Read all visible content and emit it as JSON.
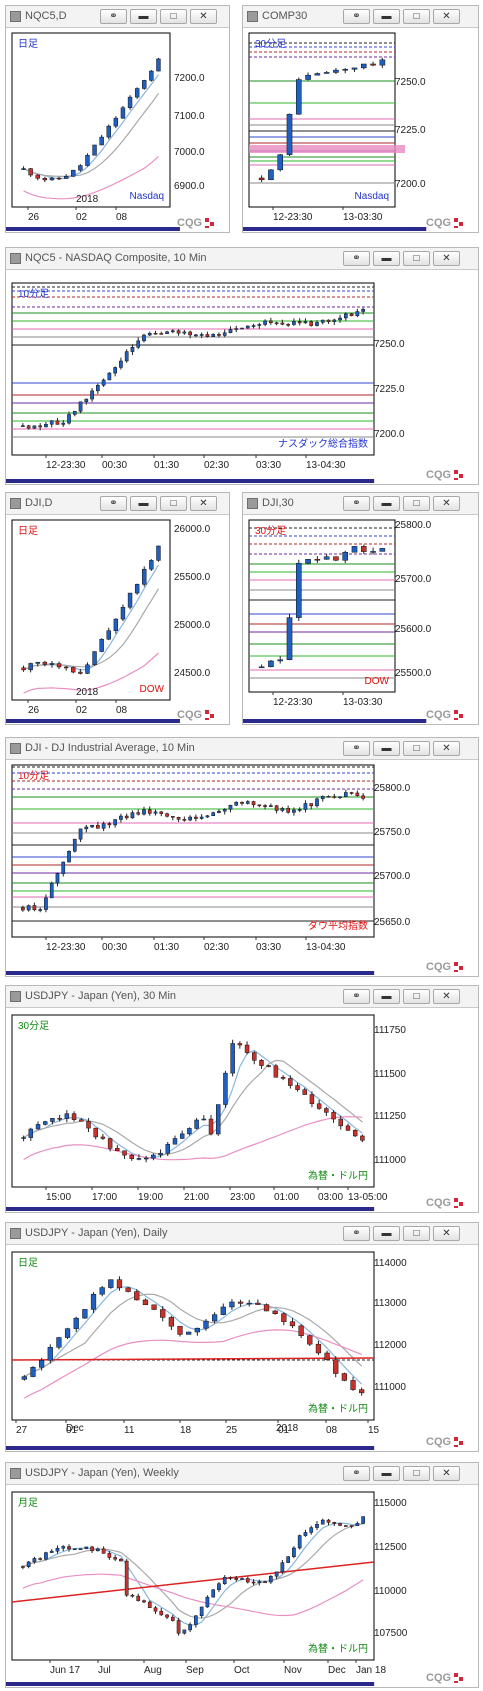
{
  "colors": {
    "up": "#1f5fc1",
    "down": "#c8322c",
    "wick": "#222222",
    "ma_fast": "#8ab6de",
    "ma_mid": "#a9a9a9",
    "ma_slow": "#e98fc2",
    "frame": "#000000",
    "brand_red": "#d6243b"
  },
  "icons": {
    "window": "window-icon",
    "link": "link-icon",
    "minimize": "minimize-icon",
    "restore": "restore-icon",
    "close": "close-icon",
    "logo": "cqg-logo"
  },
  "windows": [
    {
      "key": "nqc5_daily",
      "title": "NQC5,D",
      "label_tl": "日足",
      "label_tl_color": "#2233cc",
      "label_br": "Nasdaq",
      "label_br_color": "#2233cc",
      "ylabels": [
        "7200.0",
        "7100.0",
        "7000.0",
        "6900.0"
      ],
      "xlabels": [
        "26",
        "02",
        "08"
      ],
      "year_label": "2018"
    },
    {
      "key": "comp30",
      "title": "COMP30",
      "label_tl": "30分足",
      "label_tl_color": "#2233cc",
      "label_br": "Nasdaq",
      "label_br_color": "#2233cc",
      "ylabels": [
        "7250.0",
        "7225.0",
        "7200.0"
      ],
      "xlabels": [
        "12-23:30",
        "13-03:30"
      ]
    },
    {
      "key": "nqc5_10min",
      "title": "NQC5 - NASDAQ Composite, 10 Min",
      "label_tl": "10分足",
      "label_tl_color": "#2233cc",
      "label_br": "ナスダック総合指数",
      "label_br_color": "#2233cc",
      "ylabels": [
        "7250.0",
        "7225.0",
        "7200.0"
      ],
      "xlabels": [
        "12-23:30",
        "00:30",
        "01:30",
        "02:30",
        "03:30",
        "13-04:30"
      ]
    },
    {
      "key": "dji_daily",
      "title": "DJI,D",
      "label_tl": "日足",
      "label_tl_color": "#dd1111",
      "label_br": "DOW",
      "label_br_color": "#dd1111",
      "ylabels": [
        "26000.0",
        "25500.0",
        "25000.0",
        "24500.0"
      ],
      "xlabels": [
        "26",
        "02",
        "08"
      ],
      "year_label": "2018"
    },
    {
      "key": "dji30",
      "title": "DJI,30",
      "label_tl": "30分足",
      "label_tl_color": "#dd1111",
      "label_br": "DOW",
      "label_br_color": "#dd1111",
      "ylabels": [
        "25800.0",
        "25700.0",
        "25600.0",
        "25500.0"
      ],
      "xlabels": [
        "12-23:30",
        "13-03:30"
      ]
    },
    {
      "key": "dji_10min",
      "title": "DJI - DJ Industrial Average, 10 Min",
      "label_tl": "10分足",
      "label_tl_color": "#dd1111",
      "label_br": "ダウ平均指数",
      "label_br_color": "#dd1111",
      "ylabels": [
        "25800.0",
        "25750.0",
        "25700.0",
        "25650.0"
      ],
      "xlabels": [
        "12-23:30",
        "00:30",
        "01:30",
        "02:30",
        "03:30",
        "13-04:30"
      ]
    },
    {
      "key": "usdjpy_30",
      "title": "USDJPY - Japan (Yen), 30 Min",
      "label_tl": "30分足",
      "label_tl_color": "#118811",
      "label_br": "為替・ドル円",
      "label_br_color": "#118811",
      "ylabels": [
        "111750",
        "111500",
        "111250",
        "111000"
      ],
      "xlabels": [
        "15:00",
        "17:00",
        "19:00",
        "21:00",
        "23:00",
        "01:00",
        "03:00",
        "13-05:00"
      ]
    },
    {
      "key": "usdjpy_daily",
      "title": "USDJPY - Japan (Yen), Daily",
      "label_tl": "日足",
      "label_tl_color": "#118811",
      "label_br": "為替・ドル円",
      "label_br_color": "#118811",
      "ylabels": [
        "114000",
        "113000",
        "112000",
        "111000"
      ],
      "xlabels": [
        "27",
        "01",
        "11",
        "18",
        "25",
        "01",
        "08",
        "15"
      ],
      "month_label": "Dec",
      "year_label": "2018"
    },
    {
      "key": "usdjpy_weekly",
      "title": "USDJPY - Japan (Yen), Weekly",
      "label_tl": "月足",
      "label_tl_color": "#118811",
      "label_br": "為替・ドル円",
      "label_br_color": "#118811",
      "ylabels": [
        "115000",
        "112500",
        "110000",
        "107500"
      ],
      "xlabels": [
        "Jun 17",
        "Jul",
        "Aug",
        "Sep",
        "Oct",
        "Nov",
        "Dec",
        "Jan 18"
      ]
    }
  ]
}
